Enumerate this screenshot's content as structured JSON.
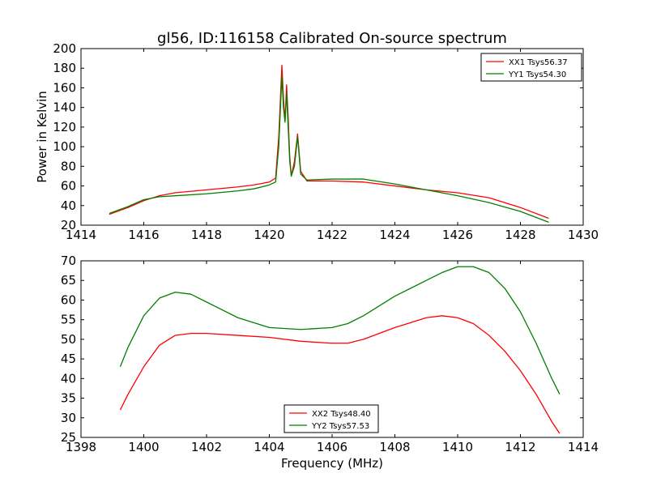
{
  "chart_data": [
    {
      "type": "line",
      "title": "gl56, ID:116158 Calibrated On-source spectrum",
      "xlabel": "",
      "ylabel": "Power in Kelvin",
      "xlim": [
        1414,
        1430
      ],
      "ylim": [
        20,
        200
      ],
      "xticks": [
        "1414",
        "1416",
        "1418",
        "1420",
        "1422",
        "1424",
        "1426",
        "1428",
        "1430"
      ],
      "yticks": [
        "20",
        "40",
        "60",
        "80",
        "100",
        "120",
        "140",
        "160",
        "180",
        "200"
      ],
      "legend_position": "top-right",
      "series": [
        {
          "name": "XX1 Tsys56.37",
          "color": "#ff0000",
          "x": [
            1414.9,
            1415.5,
            1416,
            1416.5,
            1417,
            1418,
            1419,
            1419.5,
            1420,
            1420.2,
            1420.3,
            1420.4,
            1420.45,
            1420.5,
            1420.55,
            1420.6,
            1420.65,
            1420.7,
            1420.8,
            1420.9,
            1421,
            1421.2,
            1422,
            1423,
            1424,
            1425,
            1426,
            1427,
            1428,
            1428.9
          ],
          "y": [
            31,
            38,
            45,
            50,
            53,
            56,
            59,
            61,
            64,
            68,
            110,
            183,
            150,
            126,
            163,
            130,
            90,
            70,
            85,
            113,
            75,
            65,
            65,
            64,
            60,
            56,
            53,
            48,
            38,
            27
          ]
        },
        {
          "name": "YY1 Tsys54.30",
          "color": "#008000",
          "x": [
            1414.9,
            1415.5,
            1416,
            1416.5,
            1417,
            1418,
            1419,
            1419.5,
            1420,
            1420.2,
            1420.3,
            1420.4,
            1420.45,
            1420.5,
            1420.55,
            1420.6,
            1420.65,
            1420.7,
            1420.8,
            1420.9,
            1421,
            1421.2,
            1422,
            1423,
            1424,
            1425,
            1426,
            1427,
            1428,
            1428.9
          ],
          "y": [
            32,
            39,
            46,
            49,
            50,
            52,
            55,
            57,
            61,
            64,
            100,
            172,
            140,
            125,
            155,
            120,
            85,
            70,
            80,
            110,
            72,
            66,
            67,
            67,
            62,
            56,
            50,
            43,
            34,
            23
          ]
        }
      ]
    },
    {
      "type": "line",
      "title": "",
      "xlabel": "Frequency (MHz)",
      "ylabel": "",
      "xlim": [
        1398,
        1414
      ],
      "ylim": [
        25,
        70
      ],
      "xticks": [
        "1398",
        "1400",
        "1402",
        "1404",
        "1406",
        "1408",
        "1410",
        "1412",
        "1414"
      ],
      "yticks": [
        "25",
        "30",
        "35",
        "40",
        "45",
        "50",
        "55",
        "60",
        "65",
        "70"
      ],
      "legend_position": "bottom-center",
      "series": [
        {
          "name": "XX2 Tsys48.40",
          "color": "#ff0000",
          "x": [
            1399.25,
            1399.5,
            1400,
            1400.5,
            1401,
            1401.5,
            1402,
            1403,
            1404,
            1405,
            1406,
            1406.5,
            1407,
            1408,
            1409,
            1409.5,
            1410,
            1410.5,
            1411,
            1411.5,
            1412,
            1412.5,
            1413,
            1413.25
          ],
          "y": [
            32,
            36,
            43,
            48.5,
            51,
            51.5,
            51.5,
            51,
            50.5,
            49.5,
            49,
            49,
            50,
            53,
            55.5,
            56,
            55.5,
            54,
            51,
            47,
            42,
            36,
            29,
            26
          ]
        },
        {
          "name": "YY2 Tsys57.53",
          "color": "#008000",
          "x": [
            1399.25,
            1399.5,
            1400,
            1400.5,
            1401,
            1401.5,
            1402,
            1403,
            1404,
            1405,
            1406,
            1406.5,
            1407,
            1408,
            1409,
            1409.5,
            1410,
            1410.5,
            1411,
            1411.5,
            1412,
            1412.5,
            1413,
            1413.25
          ],
          "y": [
            43,
            48,
            56,
            60.5,
            62,
            61.5,
            59.5,
            55.5,
            53,
            52.5,
            53,
            54,
            56,
            61,
            65,
            67,
            68.5,
            68.5,
            67,
            63,
            57,
            49,
            40,
            36
          ]
        }
      ]
    }
  ]
}
